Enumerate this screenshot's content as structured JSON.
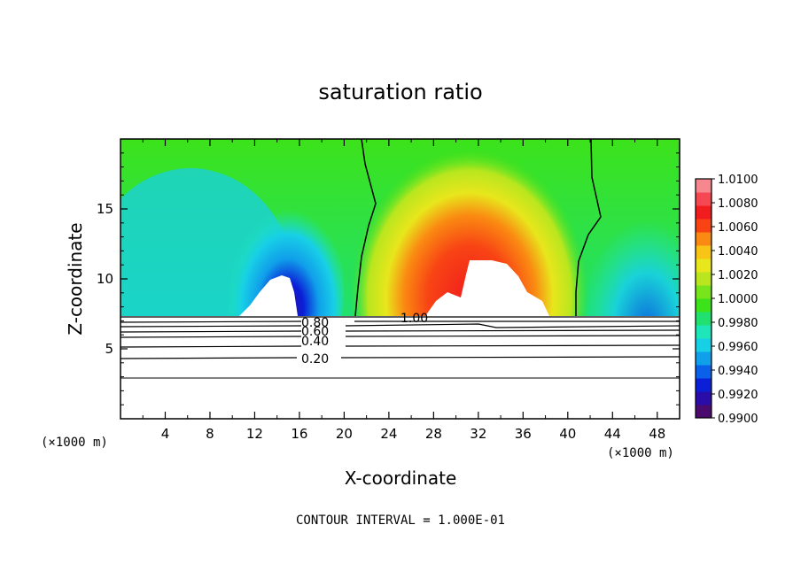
{
  "chart_data": {
    "type": "heatmap",
    "title": "saturation ratio",
    "xlabel": "X-coordinate",
    "ylabel": "Z-coordinate",
    "x_unit_left": "(×1000 m)",
    "x_unit_right": "(×1000 m)",
    "xlim": [
      0,
      50
    ],
    "ylim": [
      0,
      20
    ],
    "x_ticks": [
      4,
      8,
      12,
      16,
      20,
      24,
      28,
      32,
      36,
      40,
      44,
      48
    ],
    "y_ticks": [
      5,
      10,
      15
    ],
    "colorbar": {
      "min": 0.99,
      "max": 1.01,
      "ticks": [
        "1.0100",
        "1.0080",
        "1.0060",
        "1.0040",
        "1.0020",
        "1.0000",
        "0.9980",
        "0.9960",
        "0.9940",
        "0.9920",
        "0.9900"
      ],
      "colors": [
        "#4b0a6e",
        "#2a0ca8",
        "#0a1fd6",
        "#0a60e8",
        "#109fea",
        "#18d0e6",
        "#1ee6b8",
        "#20e070",
        "#3ce21a",
        "#78e41c",
        "#b9e61e",
        "#e8e61c",
        "#f8c416",
        "#fa8a12",
        "#f84414",
        "#f01c1e",
        "#f54852",
        "#f7878e"
      ]
    },
    "contour_lines": [
      {
        "label": "1.00"
      },
      {
        "label": "0.80"
      },
      {
        "label": "0.60"
      },
      {
        "label": "0.40"
      },
      {
        "label": "0.20"
      }
    ],
    "cloud_top_heights": [
      [
        0,
        7.3
      ],
      [
        50,
        7.3
      ]
    ],
    "field_description_points": {
      "red_core_center_x": 31,
      "red_core_center_z": 12.5,
      "blue_core_center_x": 15,
      "blue_core_center_z": 11.5,
      "saturation_boundary_x_left": 21,
      "saturation_boundary_x_right": 41
    },
    "footer": "CONTOUR INTERVAL = 1.000E-01"
  }
}
